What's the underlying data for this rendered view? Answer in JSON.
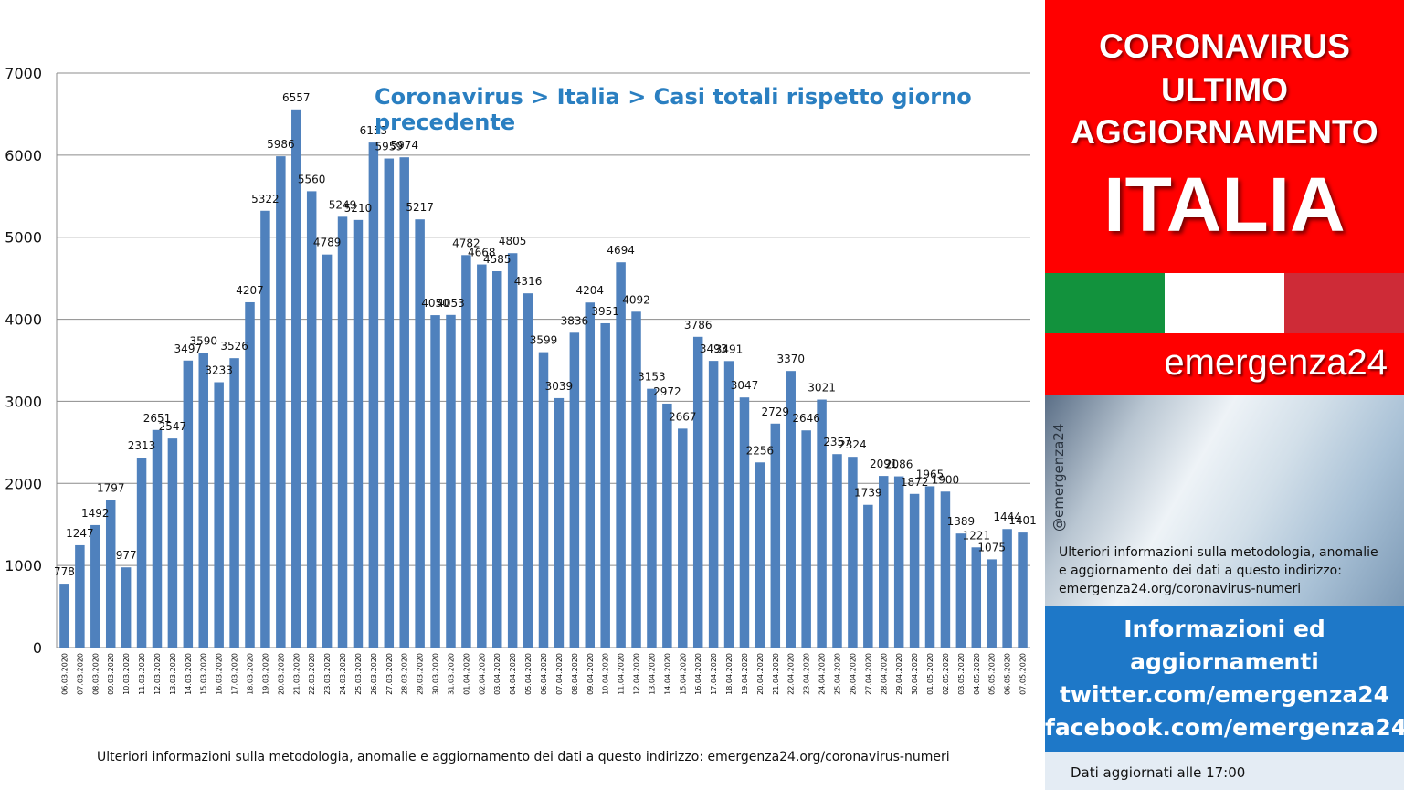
{
  "chart_data": {
    "type": "bar",
    "title": "Coronavirus > Italia > Casi totali rispetto giorno precedente",
    "xlabel": "",
    "ylabel": "",
    "ylim": [
      0,
      7000
    ],
    "yticks": [
      0,
      1000,
      2000,
      3000,
      4000,
      5000,
      6000,
      7000
    ],
    "grid": true,
    "bar_color": "#4f81bd",
    "categories": [
      "06.03.2020",
      "07.03.2020",
      "08.03.2020",
      "09.03.2020",
      "10.03.2020",
      "11.03.2020",
      "12.03.2020",
      "13.03.2020",
      "14.03.2020",
      "15.03.2020",
      "16.03.2020",
      "17.03.2020",
      "18.03.2020",
      "19.03.2020",
      "20.03.2020",
      "21.03.2020",
      "22.03.2020",
      "23.03.2020",
      "24.03.2020",
      "25.03.2020",
      "26.03.2020",
      "27.03.2020",
      "28.03.2020",
      "29.03.2020",
      "30.03.2020",
      "31.03.2020",
      "01.04.2020",
      "02.04.2020",
      "03.04.2020",
      "04.04.2020",
      "05.04.2020",
      "06.04.2020",
      "07.04.2020",
      "08.04.2020",
      "09.04.2020",
      "10.04.2020",
      "11.04.2020",
      "12.04.2020",
      "13.04.2020",
      "14.04.2020",
      "15.04.2020",
      "16.04.2020",
      "17.04.2020",
      "18.04.2020",
      "19.04.2020",
      "20.04.2020",
      "21.04.2020",
      "22.04.2020",
      "23.04.2020",
      "24.04.2020",
      "25.04.2020",
      "26.04.2020",
      "27.04.2020",
      "28.04.2020",
      "29.04.2020",
      "30.04.2020",
      "01.05.2020",
      "02.05.2020",
      "03.05.2020",
      "04.05.2020",
      "05.05.2020",
      "06.05.2020",
      "07.05.2020"
    ],
    "values": [
      778,
      1247,
      1492,
      1797,
      977,
      2313,
      2651,
      2547,
      3497,
      3590,
      3233,
      3526,
      4207,
      5322,
      5986,
      6557,
      5560,
      4789,
      5249,
      5210,
      6153,
      5959,
      5974,
      5217,
      4050,
      4053,
      4782,
      4668,
      4585,
      4805,
      4316,
      3599,
      3039,
      3836,
      4204,
      3951,
      4694,
      4092,
      3153,
      2972,
      2667,
      3786,
      3493,
      3491,
      3047,
      2256,
      2729,
      3370,
      2646,
      3021,
      2357,
      2324,
      1739,
      2091,
      2086,
      1872,
      1965,
      1900,
      1389,
      1221,
      1075,
      1444,
      1401
    ]
  },
  "footnote": "Ulteriori informazioni sulla metodologia, anomalie e aggiornamento dei dati a questo indirizzo: emergenza24.org/coronavirus-numeri",
  "panel": {
    "line1": "CORONAVIRUS",
    "line2": "ULTIMO",
    "line3": "AGGIORNAMENTO",
    "country": "ITALIA",
    "flag_colors": [
      "#12923d",
      "#ffffff",
      "#ce2b37"
    ],
    "brand": "emergenza24",
    "handle": "@emergenza24",
    "note_lines": [
      "Ulteriori informazioni sulla metodologia, anomalie",
      "e aggiornamento dei dati a questo indirizzo:",
      "emergenza24.org/coronavirus-numeri"
    ],
    "info_lines": [
      "Informazioni ed",
      "aggiornamenti",
      "twitter.com/emergenza24",
      "facebook.com/emergenza24"
    ],
    "updated": "Dati aggiornati alle 17:00"
  }
}
